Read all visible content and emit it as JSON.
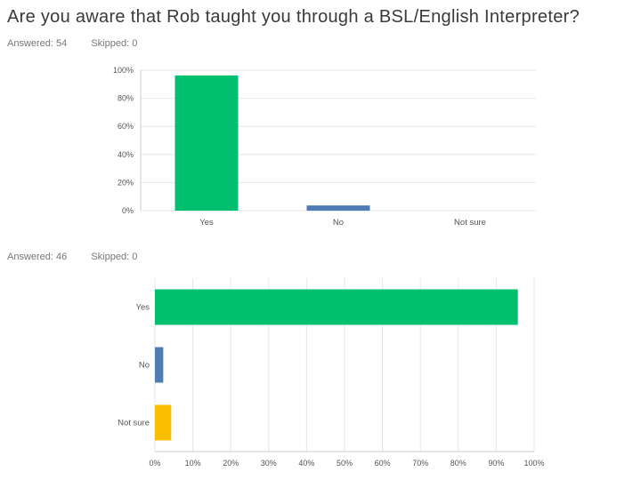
{
  "title": "Are you aware that Rob taught you through a BSL/English Interpreter?",
  "chart1_stats": {
    "answered": "Answered: 54",
    "skipped": "Skipped: 0"
  },
  "chart2_stats": {
    "answered": "Answered: 46",
    "skipped": "Skipped: 0"
  },
  "chart_data": [
    {
      "type": "bar",
      "orientation": "vertical",
      "categories": [
        "Yes",
        "No",
        "Not sure"
      ],
      "values": [
        96.3,
        3.7,
        0
      ],
      "ylim": [
        0,
        100
      ],
      "yticks": [
        "0%",
        "20%",
        "40%",
        "60%",
        "80%",
        "100%"
      ],
      "colors": [
        "#00bf6f",
        "#507cb6",
        "#f9be00"
      ],
      "grid": true
    },
    {
      "type": "bar",
      "orientation": "horizontal",
      "categories": [
        "Yes",
        "No",
        "Not sure"
      ],
      "values": [
        95.7,
        2.2,
        4.3
      ],
      "xlim": [
        0,
        100
      ],
      "xticks": [
        "0%",
        "10%",
        "20%",
        "30%",
        "40%",
        "50%",
        "60%",
        "70%",
        "80%",
        "90%",
        "100%"
      ],
      "colors": [
        "#00bf6f",
        "#507cb6",
        "#f9be00"
      ],
      "grid": true
    }
  ]
}
